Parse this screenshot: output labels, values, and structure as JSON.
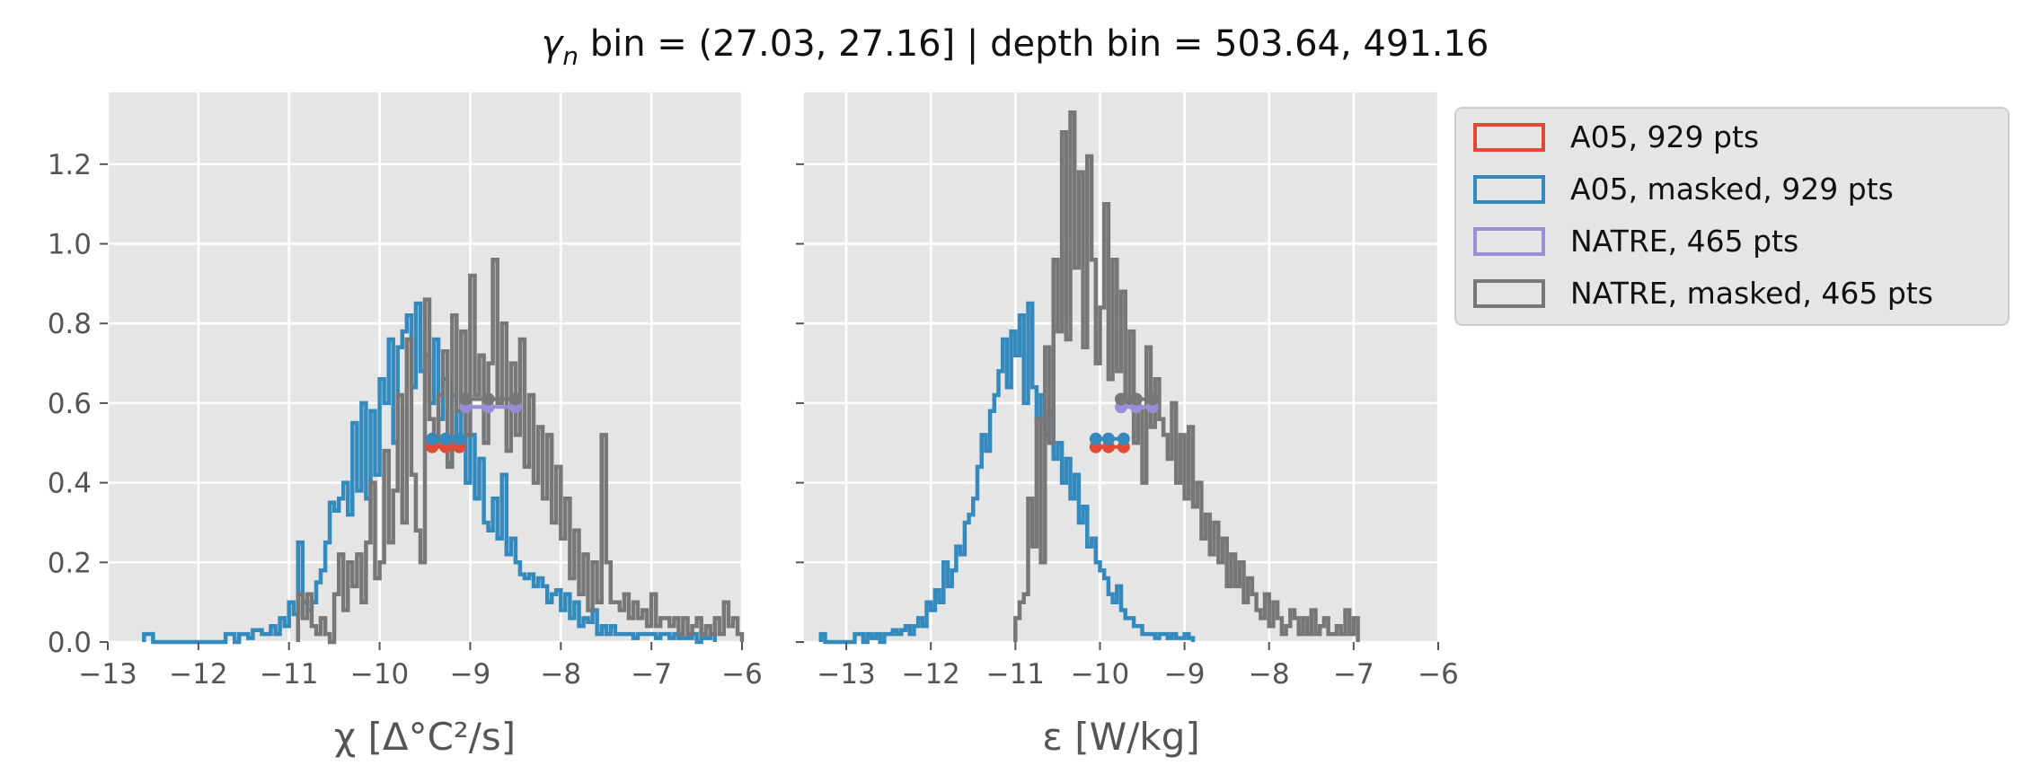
{
  "title": {
    "symbol": "γ",
    "subscript": "n",
    "text": " bin = (27.03, 27.16] | depth bin = 503.64, 491.16"
  },
  "colors": {
    "A05": "#E24A33",
    "A05_masked": "#348ABD",
    "NATRE": "#988ED5",
    "NATRE_masked": "#777777",
    "panel_bg": "#E5E5E5",
    "grid": "#FFFFFF"
  },
  "legend": {
    "placement": "outside-right",
    "entries": [
      {
        "label": "A05, 929 pts",
        "color": "#E24A33"
      },
      {
        "label": "A05, masked,  929 pts",
        "color": "#348ABD"
      },
      {
        "label": "NATRE, 465 pts",
        "color": "#988ED5"
      },
      {
        "label": "NATRE, masked,  465 pts",
        "color": "#777777"
      }
    ]
  },
  "chart_data": [
    {
      "type": "histogram-step",
      "xlabel": "χ [Δ°C²/s]",
      "xlim": [
        -13,
        -6
      ],
      "ylim": [
        0,
        1.38
      ],
      "xticks": [
        -13,
        -12,
        -11,
        -10,
        -9,
        -8,
        -7,
        -6
      ],
      "xtick_labels": [
        "−13",
        "−12",
        "−11",
        "−10",
        "−9",
        "−8",
        "−7",
        "−6"
      ],
      "yticks": [
        0,
        0.2,
        0.4,
        0.6,
        0.8,
        1.0,
        1.2
      ],
      "ytick_labels": [
        "0.0",
        "0.2",
        "0.4",
        "0.6",
        "0.8",
        "1.0",
        "1.2"
      ],
      "grid": true,
      "series": [
        {
          "key": "A05_masked",
          "color": "#348ABD",
          "start": -12.6,
          "bin_width": 0.05,
          "values": [
            0.02,
            0.02,
            0,
            0,
            0,
            0,
            0,
            0,
            0,
            0,
            0,
            0,
            0,
            0,
            0,
            0,
            0,
            0,
            0.02,
            0.02,
            0,
            0.02,
            0.02,
            0.01,
            0.03,
            0.03,
            0.02,
            0.02,
            0.04,
            0.02,
            0.06,
            0.04,
            0.1,
            0.07,
            0.25,
            0.1,
            0.08,
            0.1,
            0.15,
            0.18,
            0.25,
            0.35,
            0.33,
            0.36,
            0.4,
            0.32,
            0.55,
            0.38,
            0.6,
            0.36,
            0.58,
            0.42,
            0.66,
            0.6,
            0.76,
            0.5,
            0.74,
            0.78,
            0.82,
            0.64,
            0.85,
            0.68,
            0.72,
            0.6,
            0.76,
            0.56,
            0.66,
            0.45,
            0.62,
            0.5,
            0.58,
            0.4,
            0.52,
            0.36,
            0.46,
            0.3,
            0.28,
            0.36,
            0.26,
            0.42,
            0.22,
            0.26,
            0.2,
            0.17,
            0.16,
            0.17,
            0.14,
            0.16,
            0.14,
            0.1,
            0.12,
            0.13,
            0.08,
            0.12,
            0.06,
            0.1,
            0.04,
            0.06,
            0.05,
            0.08,
            0.02,
            0.04,
            0.02,
            0.04,
            0.02,
            0.02,
            0.02,
            0.02,
            0.01,
            0.02,
            0.02,
            0.02,
            0.02,
            0.01,
            0.02,
            0.02,
            0.01,
            0.02,
            0.01,
            0.01,
            0.01,
            0.02,
            0,
            0.01,
            0.01,
            0.02
          ]
        },
        {
          "key": "NATRE_masked",
          "color": "#777777",
          "start": -10.9,
          "bin_width": 0.05,
          "values": [
            0.12,
            0.06,
            0.12,
            0.04,
            0.02,
            0.06,
            0.02,
            0,
            0.12,
            0.22,
            0.08,
            0.2,
            0.14,
            0.22,
            0.1,
            0.25,
            0.4,
            0.16,
            0.2,
            0.48,
            0.25,
            0.38,
            0.62,
            0.3,
            0.76,
            0.42,
            0.28,
            0.2,
            0.86,
            0.56,
            0.5,
            0.62,
            0.73,
            0.44,
            0.82,
            0.58,
            0.78,
            0.52,
            0.92,
            0.62,
            0.72,
            0.5,
            0.7,
            0.96,
            0.6,
            0.8,
            0.48,
            0.7,
            0.52,
            0.76,
            0.44,
            0.62,
            0.4,
            0.54,
            0.36,
            0.52,
            0.3,
            0.44,
            0.26,
            0.36,
            0.16,
            0.28,
            0.12,
            0.22,
            0.08,
            0.2,
            0.1,
            0.52,
            0.2,
            0.1,
            0.1,
            0.08,
            0.12,
            0.06,
            0.1,
            0.06,
            0.08,
            0.04,
            0.12,
            0.04,
            0.06,
            0.06,
            0.04,
            0.06,
            0.02,
            0.06,
            0.02,
            0.04,
            0.06,
            0.02,
            0.04,
            0.02,
            0.06,
            0.02,
            0.1,
            0.04,
            0.06,
            0.02
          ]
        }
      ],
      "overlays": [
        {
          "key": "A05",
          "color": "#E24A33",
          "points": [
            [
              -9.42,
              0.49
            ],
            [
              -9.27,
              0.49
            ],
            [
              -9.12,
              0.49
            ]
          ]
        },
        {
          "key": "A05_masked_mean",
          "color": "#348ABD",
          "points": [
            [
              -9.42,
              0.51
            ],
            [
              -9.27,
              0.51
            ],
            [
              -9.12,
              0.51
            ]
          ]
        },
        {
          "key": "NATRE",
          "color": "#988ED5",
          "points": [
            [
              -9.05,
              0.59
            ],
            [
              -8.8,
              0.59
            ],
            [
              -8.5,
              0.59
            ]
          ]
        },
        {
          "key": "NATRE_masked_mean",
          "color": "#777777",
          "points": [
            [
              -9.05,
              0.61
            ],
            [
              -8.8,
              0.61
            ],
            [
              -8.5,
              0.61
            ]
          ]
        }
      ]
    },
    {
      "type": "histogram-step",
      "xlabel": "ε [W/kg]",
      "xlim": [
        -13.5,
        -6
      ],
      "ylim": [
        0,
        1.38
      ],
      "xticks": [
        -13,
        -12,
        -11,
        -10,
        -9,
        -8,
        -7,
        -6
      ],
      "xtick_labels": [
        "−13",
        "−12",
        "−11",
        "−10",
        "−9",
        "−8",
        "−7",
        "−6"
      ],
      "yticks": [
        0,
        0.2,
        0.4,
        0.6,
        0.8,
        1.0,
        1.2
      ],
      "ytick_labels": [
        "",
        "",
        "",
        "",
        "",
        "",
        ""
      ],
      "grid": true,
      "series": [
        {
          "key": "A05_masked",
          "color": "#348ABD",
          "start": -13.3,
          "bin_width": 0.05,
          "values": [
            0.02,
            0,
            0,
            0,
            0,
            0,
            0,
            0,
            0.02,
            0.02,
            0,
            0.02,
            0.01,
            0.02,
            0,
            0.02,
            0.02,
            0.03,
            0.02,
            0.03,
            0.04,
            0.02,
            0.04,
            0.06,
            0.04,
            0.1,
            0.08,
            0.13,
            0.1,
            0.2,
            0.14,
            0.18,
            0.24,
            0.22,
            0.3,
            0.32,
            0.36,
            0.44,
            0.52,
            0.48,
            0.58,
            0.62,
            0.68,
            0.76,
            0.64,
            0.78,
            0.72,
            0.82,
            0.6,
            0.85,
            0.64,
            0.56,
            0.62,
            0.52,
            0.58,
            0.46,
            0.5,
            0.4,
            0.46,
            0.36,
            0.42,
            0.3,
            0.34,
            0.24,
            0.26,
            0.2,
            0.18,
            0.16,
            0.12,
            0.1,
            0.14,
            0.08,
            0.06,
            0.06,
            0.04,
            0.04,
            0.02,
            0.02,
            0.02,
            0.01,
            0.02,
            0.02,
            0.01,
            0.02,
            0.01,
            0.01,
            0.02,
            0.01
          ]
        },
        {
          "key": "NATRE_masked",
          "color": "#777777",
          "start": -11.0,
          "bin_width": 0.05,
          "values": [
            0.06,
            0.1,
            0.12,
            0.36,
            0.24,
            0.56,
            0.2,
            0.74,
            0.5,
            0.96,
            0.78,
            1.28,
            0.76,
            1.33,
            0.94,
            1.18,
            0.74,
            1.22,
            0.96,
            0.7,
            0.84,
            1.1,
            0.66,
            0.96,
            0.68,
            0.88,
            0.6,
            0.78,
            0.5,
            0.58,
            0.4,
            0.74,
            0.54,
            0.66,
            0.56,
            0.52,
            0.46,
            0.6,
            0.4,
            0.52,
            0.36,
            0.54,
            0.34,
            0.4,
            0.26,
            0.32,
            0.22,
            0.3,
            0.2,
            0.26,
            0.14,
            0.22,
            0.14,
            0.2,
            0.1,
            0.16,
            0.12,
            0.08,
            0.06,
            0.12,
            0.04,
            0.1,
            0.06,
            0.02,
            0.04,
            0.08,
            0.06,
            0.02,
            0.06,
            0.02,
            0.08,
            0.02,
            0.04,
            0.06,
            0.02,
            0.02,
            0.04,
            0.02,
            0.08,
            0.02,
            0.06
          ]
        }
      ],
      "overlays": [
        {
          "key": "A05",
          "color": "#E24A33",
          "points": [
            [
              -10.05,
              0.49
            ],
            [
              -9.9,
              0.49
            ],
            [
              -9.72,
              0.49
            ]
          ]
        },
        {
          "key": "A05_masked_mean",
          "color": "#348ABD",
          "points": [
            [
              -10.05,
              0.51
            ],
            [
              -9.9,
              0.51
            ],
            [
              -9.72,
              0.51
            ]
          ]
        },
        {
          "key": "NATRE",
          "color": "#988ED5",
          "points": [
            [
              -9.75,
              0.59
            ],
            [
              -9.57,
              0.59
            ],
            [
              -9.38,
              0.59
            ]
          ]
        },
        {
          "key": "NATRE_masked_mean",
          "color": "#777777",
          "points": [
            [
              -9.75,
              0.61
            ],
            [
              -9.57,
              0.61
            ],
            [
              -9.38,
              0.61
            ]
          ]
        }
      ]
    }
  ]
}
